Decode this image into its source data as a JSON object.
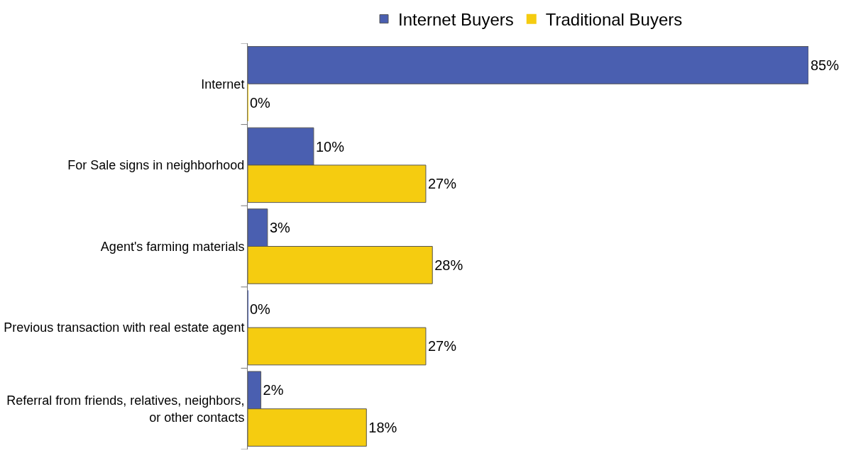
{
  "chart_data": {
    "type": "bar",
    "orientation": "horizontal",
    "categories": [
      "Internet",
      "For Sale signs in neighborhood",
      "Agent's farming materials",
      "Previous transaction with real estate agent",
      "Referral from friends, relatives, neighbors,\nor other contacts"
    ],
    "series": [
      {
        "name": "Internet Buyers",
        "color": "#4a5fb0",
        "values": [
          85,
          10,
          3,
          0,
          2
        ],
        "value_labels": [
          "85%",
          "10%",
          "3%",
          "0%",
          "2%"
        ]
      },
      {
        "name": "Traditional Buyers",
        "color": "#f5cc10",
        "values": [
          0,
          27,
          28,
          27,
          18
        ],
        "value_labels": [
          "0%",
          "27%",
          "28%",
          "27%",
          "18%"
        ]
      }
    ],
    "legend": "top"
  }
}
